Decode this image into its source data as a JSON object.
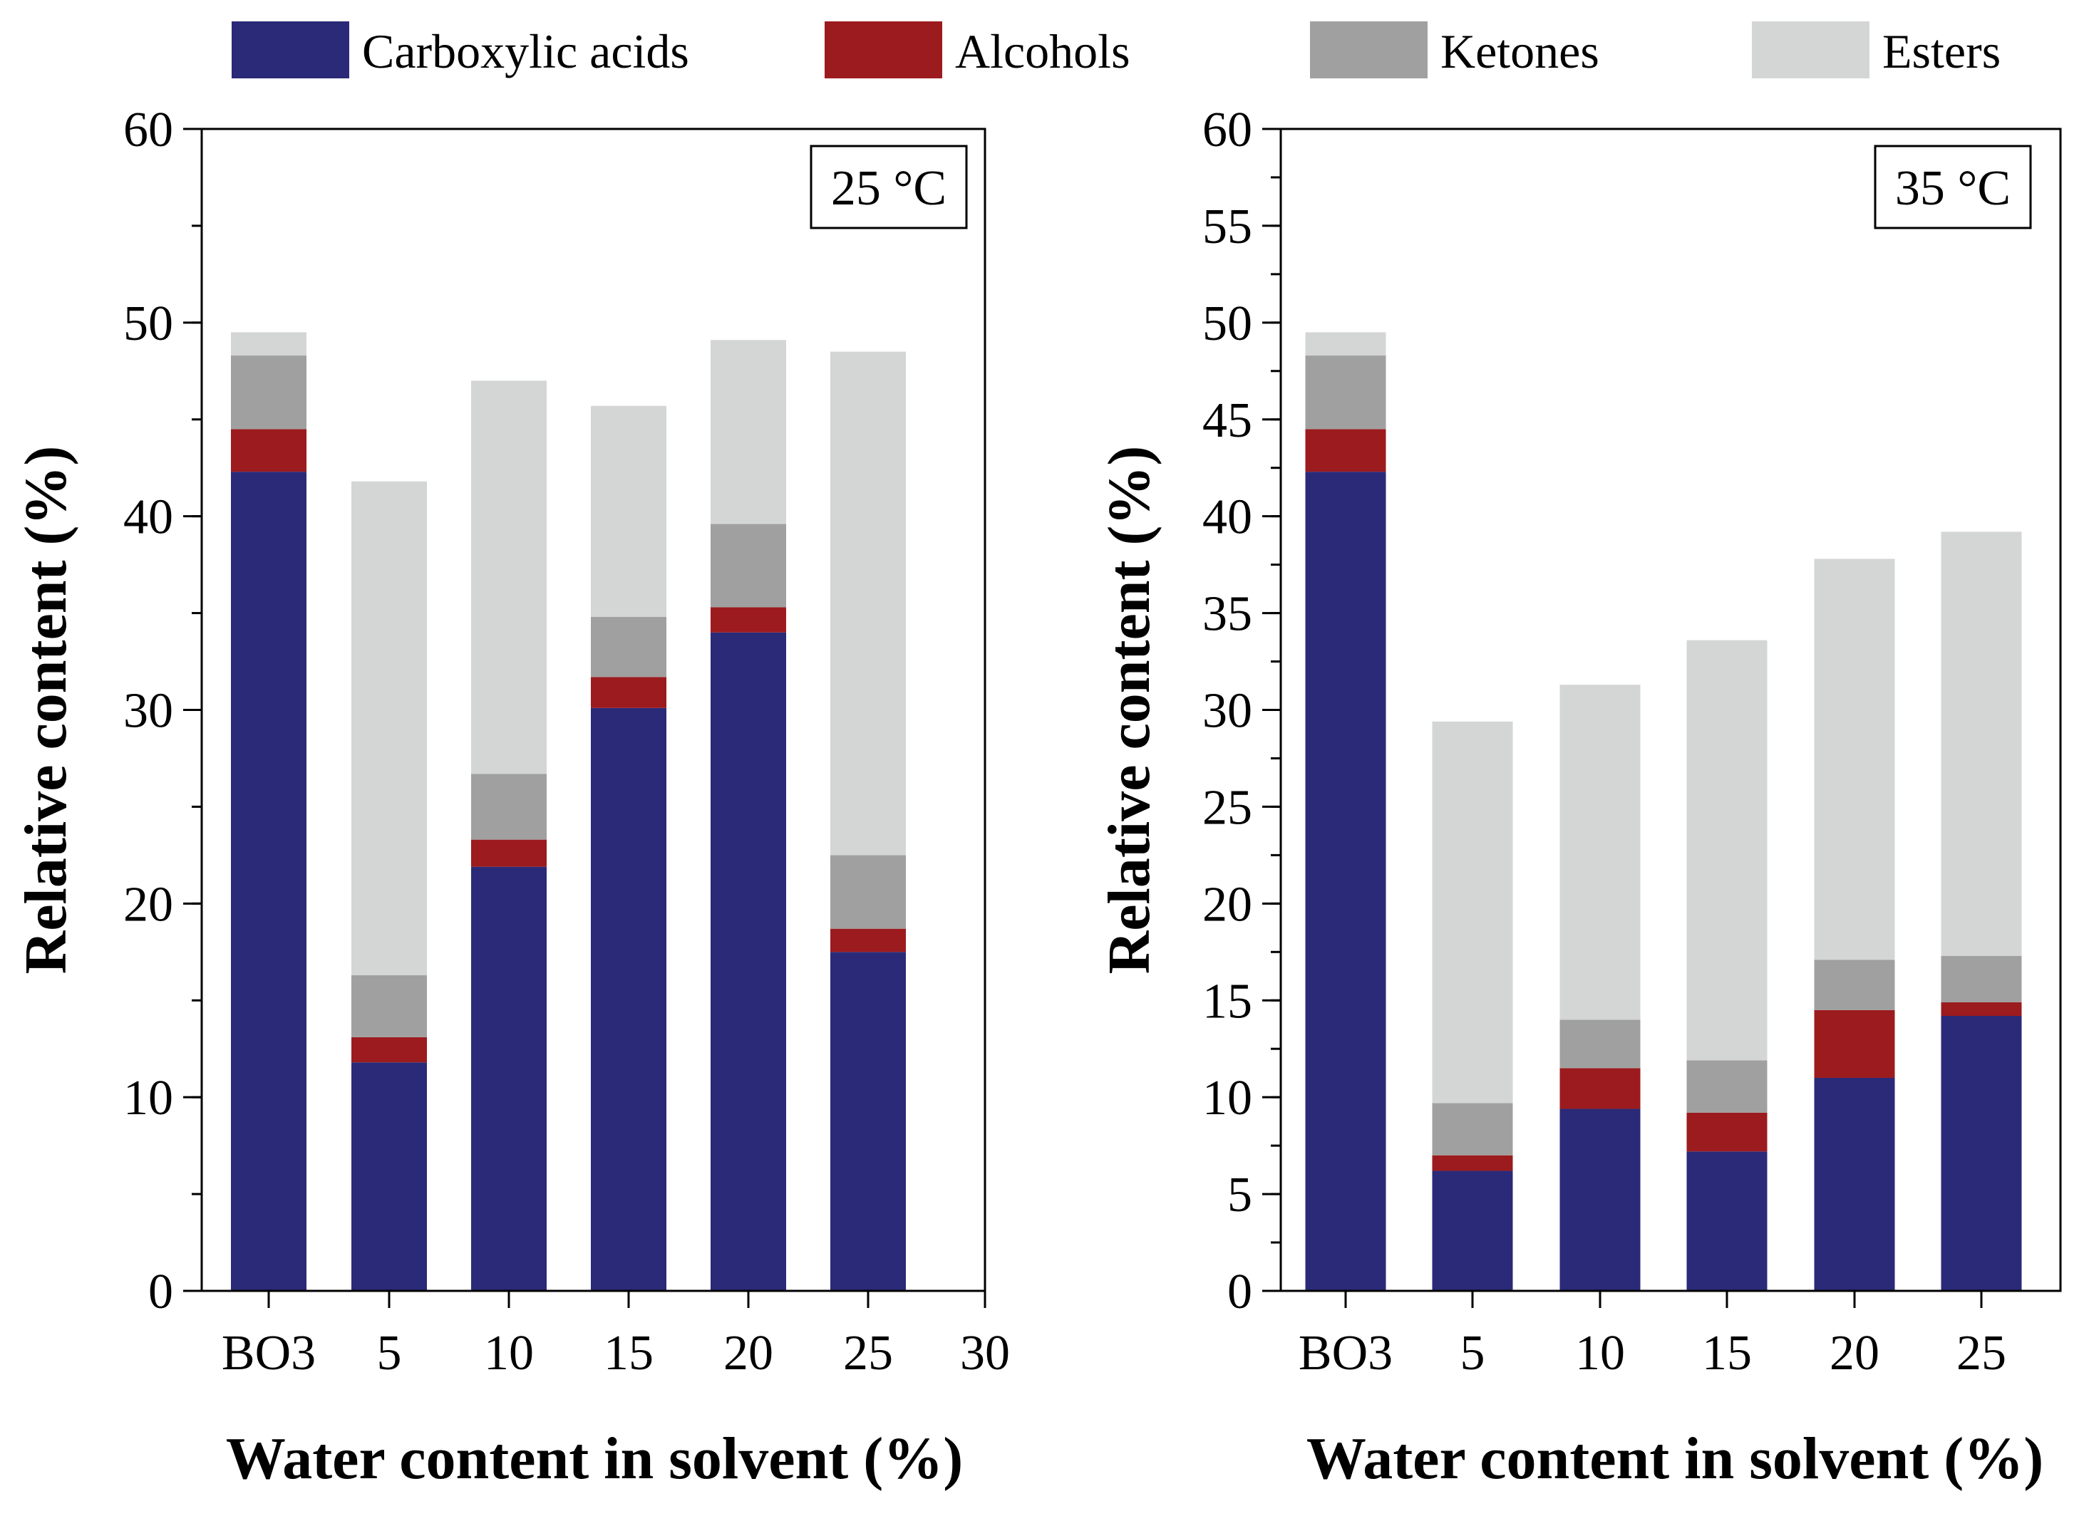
{
  "legend": [
    {
      "name": "Carboxylic acids",
      "color": "#2a2a78"
    },
    {
      "name": "Alcohols",
      "color": "#9c1b1e"
    },
    {
      "name": "Ketones",
      "color": "#a0a0a0"
    },
    {
      "name": "Esters",
      "color": "#d4d5d5"
    }
  ],
  "chart_data": [
    {
      "type": "bar",
      "stacked": true,
      "panel_label": "25 °C",
      "xlabel": "Water content in solvent (%)",
      "ylabel": "Relative content (%)",
      "ylim": [
        0,
        60
      ],
      "yticks": [
        "0",
        "10",
        "20",
        "30",
        "40",
        "50",
        "60"
      ],
      "xticks": [
        "BO3",
        "5",
        "10",
        "15",
        "20",
        "25",
        "30"
      ],
      "categories": [
        "BO3",
        "5",
        "10",
        "15",
        "20",
        "25"
      ],
      "series": [
        {
          "name": "Carboxylic acids",
          "values": [
            42.3,
            11.8,
            21.9,
            30.1,
            34.0,
            17.5
          ]
        },
        {
          "name": "Alcohols",
          "values": [
            2.2,
            1.3,
            1.4,
            1.6,
            1.3,
            1.2
          ]
        },
        {
          "name": "Ketones",
          "values": [
            3.8,
            3.2,
            3.4,
            3.1,
            4.3,
            3.8
          ]
        },
        {
          "name": "Esters",
          "values": [
            1.2,
            25.5,
            20.3,
            10.9,
            9.5,
            26.0
          ]
        }
      ]
    },
    {
      "type": "bar",
      "stacked": true,
      "panel_label": "35 °C",
      "xlabel": "Water content in solvent (%)",
      "ylabel": "Relative content (%)",
      "ylim": [
        0,
        60
      ],
      "yticks": [
        "0",
        "5",
        "10",
        "15",
        "20",
        "25",
        "30",
        "35",
        "40",
        "45",
        "50",
        "55",
        "60"
      ],
      "xticks": [
        "BO3",
        "5",
        "10",
        "15",
        "20",
        "25"
      ],
      "categories": [
        "BO3",
        "5",
        "10",
        "15",
        "20",
        "25"
      ],
      "series": [
        {
          "name": "Carboxylic acids",
          "values": [
            42.3,
            6.2,
            9.4,
            7.2,
            11.0,
            14.2
          ]
        },
        {
          "name": "Alcohols",
          "values": [
            2.2,
            0.8,
            2.1,
            2.0,
            3.5,
            0.7
          ]
        },
        {
          "name": "Ketones",
          "values": [
            3.8,
            2.7,
            2.5,
            2.7,
            2.6,
            2.4
          ]
        },
        {
          "name": "Esters",
          "values": [
            1.2,
            19.7,
            17.3,
            21.7,
            20.7,
            21.9
          ]
        }
      ]
    }
  ]
}
